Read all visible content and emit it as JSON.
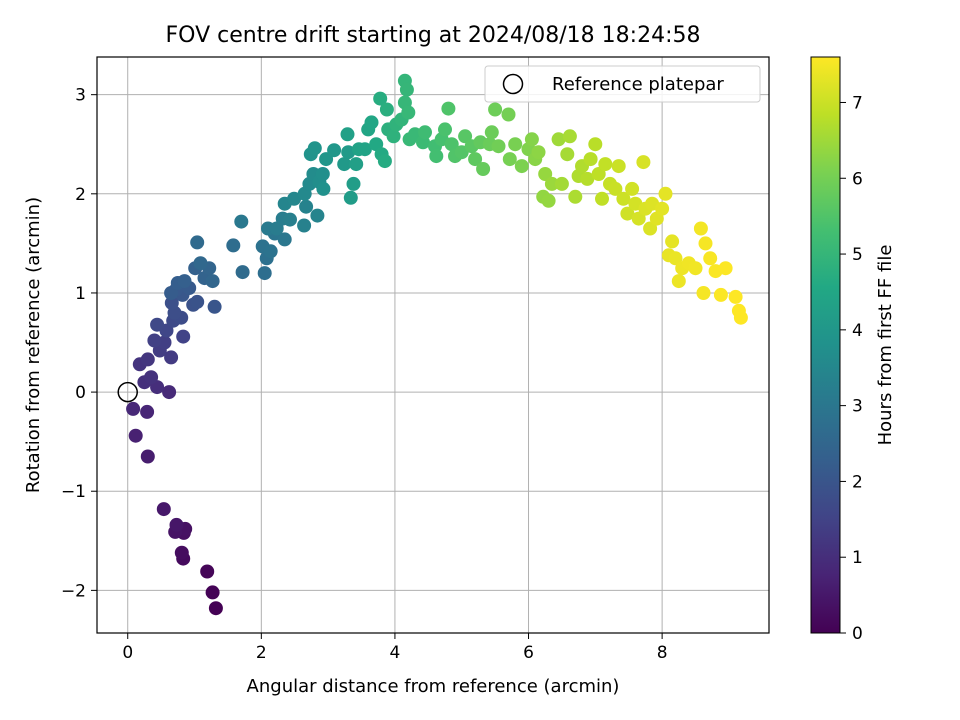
{
  "chart_data": {
    "type": "scatter",
    "title": "FOV centre drift starting at 2024/08/18 18:24:58",
    "xlabel": "Angular distance from reference (arcmin)",
    "ylabel": "Rotation from reference (arcmin)",
    "xlim": [
      -0.46,
      9.6
    ],
    "ylim": [
      -2.43,
      3.38
    ],
    "xticks": [
      0,
      2,
      4,
      6,
      8
    ],
    "xtick_labels": [
      "0",
      "2",
      "4",
      "6",
      "8"
    ],
    "yticks": [
      -2,
      -1,
      0,
      1,
      2,
      3
    ],
    "ytick_labels": [
      "−2",
      "−1",
      "0",
      "1",
      "2",
      "3"
    ],
    "grid": true,
    "legend": {
      "position": "top-right",
      "entries": [
        "Reference platepar"
      ]
    },
    "reference_point": {
      "x": 0,
      "y": 0,
      "label": "Reference platepar",
      "marker": "open-circle"
    },
    "colorbar": {
      "label": "Hours from first FF file",
      "range": [
        0,
        7.6
      ],
      "ticks": [
        0,
        1,
        2,
        3,
        4,
        5,
        6,
        7
      ],
      "tick_labels": [
        "0",
        "1",
        "2",
        "3",
        "4",
        "5",
        "6",
        "7"
      ],
      "colormap": "viridis"
    },
    "series": [
      {
        "columns": [
          "x",
          "y",
          "hours"
        ],
        "points": [
          [
            1.32,
            -2.18,
            0.0
          ],
          [
            1.27,
            -2.02,
            0.05
          ],
          [
            1.19,
            -1.81,
            0.1
          ],
          [
            0.83,
            -1.68,
            0.2
          ],
          [
            0.81,
            -1.62,
            0.25
          ],
          [
            0.84,
            -1.42,
            0.3
          ],
          [
            0.86,
            -1.38,
            0.35
          ],
          [
            0.71,
            -1.41,
            0.4
          ],
          [
            0.73,
            -1.34,
            0.45
          ],
          [
            0.54,
            -1.18,
            0.5
          ],
          [
            0.3,
            -0.65,
            0.6
          ],
          [
            0.12,
            -0.44,
            0.7
          ],
          [
            0.29,
            -0.2,
            0.8
          ],
          [
            0.08,
            -0.17,
            0.85
          ],
          [
            0.62,
            0.0,
            0.9
          ],
          [
            0.44,
            0.05,
            1.0
          ],
          [
            0.25,
            0.1,
            1.05
          ],
          [
            0.35,
            0.15,
            1.1
          ],
          [
            0.18,
            0.28,
            1.15
          ],
          [
            0.3,
            0.33,
            1.2
          ],
          [
            0.65,
            0.35,
            1.3
          ],
          [
            0.48,
            0.42,
            1.35
          ],
          [
            0.55,
            0.5,
            1.4
          ],
          [
            0.4,
            0.52,
            1.45
          ],
          [
            0.83,
            0.56,
            1.5
          ],
          [
            0.58,
            0.62,
            1.6
          ],
          [
            0.44,
            0.68,
            1.65
          ],
          [
            0.68,
            0.72,
            1.7
          ],
          [
            0.8,
            0.75,
            1.75
          ],
          [
            0.7,
            0.8,
            1.8
          ],
          [
            0.66,
            0.9,
            1.85
          ],
          [
            0.98,
            0.88,
            1.9
          ],
          [
            1.04,
            0.91,
            1.95
          ],
          [
            1.3,
            0.86,
            2.0
          ],
          [
            0.82,
            0.98,
            2.05
          ],
          [
            0.72,
            1.03,
            2.1
          ],
          [
            0.92,
            1.05,
            2.15
          ],
          [
            0.65,
            1.0,
            2.2
          ],
          [
            0.75,
            1.1,
            2.25
          ],
          [
            0.85,
            1.12,
            2.3
          ],
          [
            1.01,
            1.25,
            2.35
          ],
          [
            1.15,
            1.15,
            2.4
          ],
          [
            1.22,
            1.25,
            2.45
          ],
          [
            1.27,
            1.12,
            2.5
          ],
          [
            1.09,
            1.3,
            2.55
          ],
          [
            1.04,
            1.51,
            2.6
          ],
          [
            1.72,
            1.21,
            2.65
          ],
          [
            1.58,
            1.48,
            2.7
          ],
          [
            2.05,
            1.2,
            2.75
          ],
          [
            2.08,
            1.35,
            2.8
          ],
          [
            2.02,
            1.47,
            2.85
          ],
          [
            2.14,
            1.42,
            2.9
          ],
          [
            2.2,
            1.6,
            2.95
          ],
          [
            2.35,
            1.54,
            3.0
          ],
          [
            1.7,
            1.72,
            3.05
          ],
          [
            2.1,
            1.65,
            3.1
          ],
          [
            2.23,
            1.65,
            3.15
          ],
          [
            2.32,
            1.75,
            3.2
          ],
          [
            2.43,
            1.74,
            3.25
          ],
          [
            2.64,
            1.68,
            3.3
          ],
          [
            2.67,
            1.87,
            3.35
          ],
          [
            2.84,
            1.78,
            3.4
          ],
          [
            2.35,
            1.9,
            3.45
          ],
          [
            2.49,
            1.95,
            3.5
          ],
          [
            2.65,
            2.0,
            3.55
          ],
          [
            2.72,
            2.1,
            3.6
          ],
          [
            2.78,
            2.2,
            3.65
          ],
          [
            2.87,
            2.12,
            3.7
          ],
          [
            2.92,
            2.2,
            3.75
          ],
          [
            2.93,
            2.05,
            3.8
          ],
          [
            2.74,
            2.4,
            3.85
          ],
          [
            2.8,
            2.46,
            3.9
          ],
          [
            2.97,
            2.35,
            3.95
          ],
          [
            3.09,
            2.44,
            4.0
          ],
          [
            3.24,
            2.3,
            4.05
          ],
          [
            3.3,
            2.42,
            4.1
          ],
          [
            3.34,
            1.96,
            4.15
          ],
          [
            3.38,
            2.1,
            4.2
          ],
          [
            3.42,
            2.3,
            4.25
          ],
          [
            3.29,
            2.6,
            4.3
          ],
          [
            3.46,
            2.45,
            4.35
          ],
          [
            3.55,
            2.45,
            4.4
          ],
          [
            3.6,
            2.65,
            4.45
          ],
          [
            3.65,
            2.72,
            4.5
          ],
          [
            3.72,
            2.5,
            4.55
          ],
          [
            3.8,
            2.4,
            4.6
          ],
          [
            3.85,
            2.33,
            4.65
          ],
          [
            3.78,
            2.96,
            4.7
          ],
          [
            3.88,
            2.85,
            4.75
          ],
          [
            3.9,
            2.65,
            4.8
          ],
          [
            3.98,
            2.58,
            4.85
          ],
          [
            4.02,
            2.7,
            4.9
          ],
          [
            4.1,
            2.75,
            4.95
          ],
          [
            4.15,
            3.14,
            4.98
          ],
          [
            4.18,
            3.05,
            5.0
          ],
          [
            4.15,
            2.92,
            5.02
          ],
          [
            4.2,
            2.82,
            5.05
          ],
          [
            4.22,
            2.55,
            5.08
          ],
          [
            4.3,
            2.6,
            5.1
          ],
          [
            4.42,
            2.52,
            5.15
          ],
          [
            4.45,
            2.62,
            5.2
          ],
          [
            4.6,
            2.48,
            5.25
          ],
          [
            4.62,
            2.38,
            5.3
          ],
          [
            4.7,
            2.55,
            5.35
          ],
          [
            4.75,
            2.65,
            5.4
          ],
          [
            4.85,
            2.5,
            5.45
          ],
          [
            4.8,
            2.86,
            5.48
          ],
          [
            4.9,
            2.38,
            5.5
          ],
          [
            5.0,
            2.42,
            5.55
          ],
          [
            5.05,
            2.58,
            5.6
          ],
          [
            5.15,
            2.48,
            5.65
          ],
          [
            5.2,
            2.35,
            5.7
          ],
          [
            5.28,
            2.52,
            5.75
          ],
          [
            5.32,
            2.25,
            5.8
          ],
          [
            5.42,
            2.5,
            5.85
          ],
          [
            5.45,
            2.62,
            5.88
          ],
          [
            5.5,
            2.85,
            5.9
          ],
          [
            5.55,
            2.48,
            5.95
          ],
          [
            5.7,
            2.8,
            6.0
          ],
          [
            5.72,
            2.35,
            6.02
          ],
          [
            5.8,
            2.5,
            6.05
          ],
          [
            5.9,
            2.28,
            6.1
          ],
          [
            6.0,
            2.45,
            6.15
          ],
          [
            6.05,
            2.55,
            6.2
          ],
          [
            6.1,
            2.35,
            6.25
          ],
          [
            6.15,
            2.42,
            6.3
          ],
          [
            6.22,
            1.97,
            6.35
          ],
          [
            6.3,
            1.93,
            6.38
          ],
          [
            6.25,
            2.2,
            6.4
          ],
          [
            6.35,
            2.1,
            6.45
          ],
          [
            6.45,
            2.55,
            6.5
          ],
          [
            6.5,
            2.1,
            6.55
          ],
          [
            6.58,
            2.4,
            6.58
          ],
          [
            6.62,
            2.58,
            6.6
          ],
          [
            6.7,
            1.97,
            6.65
          ],
          [
            6.75,
            2.18,
            6.68
          ],
          [
            6.8,
            2.28,
            6.7
          ],
          [
            6.88,
            2.15,
            6.75
          ],
          [
            6.93,
            2.35,
            6.78
          ],
          [
            7.0,
            2.5,
            6.8
          ],
          [
            7.05,
            2.2,
            6.85
          ],
          [
            7.1,
            1.95,
            6.88
          ],
          [
            7.15,
            2.3,
            6.9
          ],
          [
            7.22,
            2.1,
            6.95
          ],
          [
            7.3,
            2.05,
            6.98
          ],
          [
            7.35,
            2.28,
            7.0
          ],
          [
            7.42,
            1.95,
            7.02
          ],
          [
            7.48,
            1.8,
            7.05
          ],
          [
            7.55,
            2.05,
            7.08
          ],
          [
            7.6,
            1.9,
            7.1
          ],
          [
            7.65,
            1.75,
            7.12
          ],
          [
            7.72,
            2.32,
            7.15
          ],
          [
            7.75,
            1.85,
            7.18
          ],
          [
            7.82,
            1.65,
            7.2
          ],
          [
            7.85,
            1.9,
            7.22
          ],
          [
            7.92,
            1.75,
            7.25
          ],
          [
            8.0,
            1.85,
            7.28
          ],
          [
            8.05,
            2.0,
            7.3
          ],
          [
            8.15,
            1.52,
            7.32
          ],
          [
            8.1,
            1.38,
            7.35
          ],
          [
            8.2,
            1.35,
            7.37
          ],
          [
            8.25,
            1.12,
            7.4
          ],
          [
            8.3,
            1.25,
            7.42
          ],
          [
            8.4,
            1.3,
            7.44
          ],
          [
            8.5,
            1.25,
            7.46
          ],
          [
            8.58,
            1.65,
            7.48
          ],
          [
            8.62,
            1.0,
            7.5
          ],
          [
            8.65,
            1.5,
            7.52
          ],
          [
            8.72,
            1.35,
            7.54
          ],
          [
            8.8,
            1.22,
            7.56
          ],
          [
            8.88,
            0.98,
            7.58
          ],
          [
            8.95,
            1.25,
            7.59
          ],
          [
            9.1,
            0.96,
            7.6
          ],
          [
            9.15,
            0.82,
            7.6
          ],
          [
            9.18,
            0.75,
            7.6
          ]
        ]
      }
    ]
  }
}
